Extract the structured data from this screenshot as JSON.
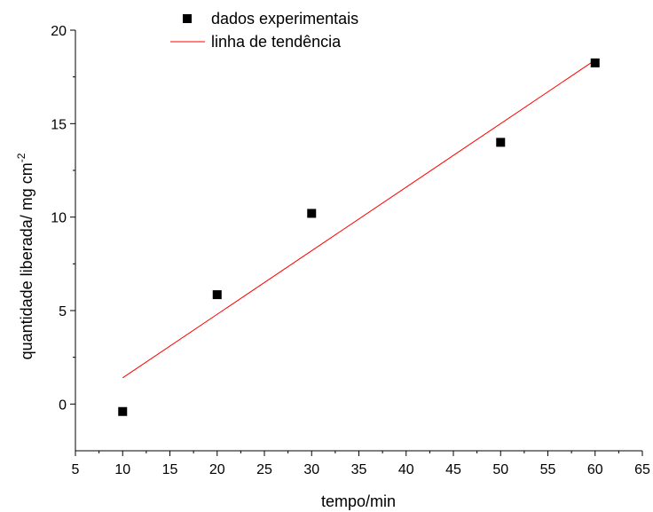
{
  "chart_data": {
    "type": "scatter",
    "title": "",
    "xlabel": "tempo/min",
    "ylabel_main": "quantidade liberada/ mg cm",
    "ylabel_sup": "-2",
    "xlim": [
      5,
      65
    ],
    "ylim": [
      -2.5,
      20
    ],
    "xticks": [
      5,
      10,
      15,
      20,
      25,
      30,
      35,
      40,
      45,
      50,
      55,
      60,
      65
    ],
    "yticks": [
      0,
      5,
      10,
      15,
      20
    ],
    "grid": false,
    "legend_position": "top-left",
    "series": [
      {
        "name": "dados experimentais",
        "kind": "scatter",
        "marker": "square",
        "color": "#000000",
        "x": [
          10,
          20,
          30,
          50,
          60
        ],
        "y": [
          -0.4,
          5.85,
          10.2,
          14.0,
          18.25
        ]
      },
      {
        "name": "linha de tendência",
        "kind": "line",
        "color": "#ff0000",
        "x": [
          10,
          60
        ],
        "y": [
          1.4,
          18.4
        ]
      }
    ]
  }
}
